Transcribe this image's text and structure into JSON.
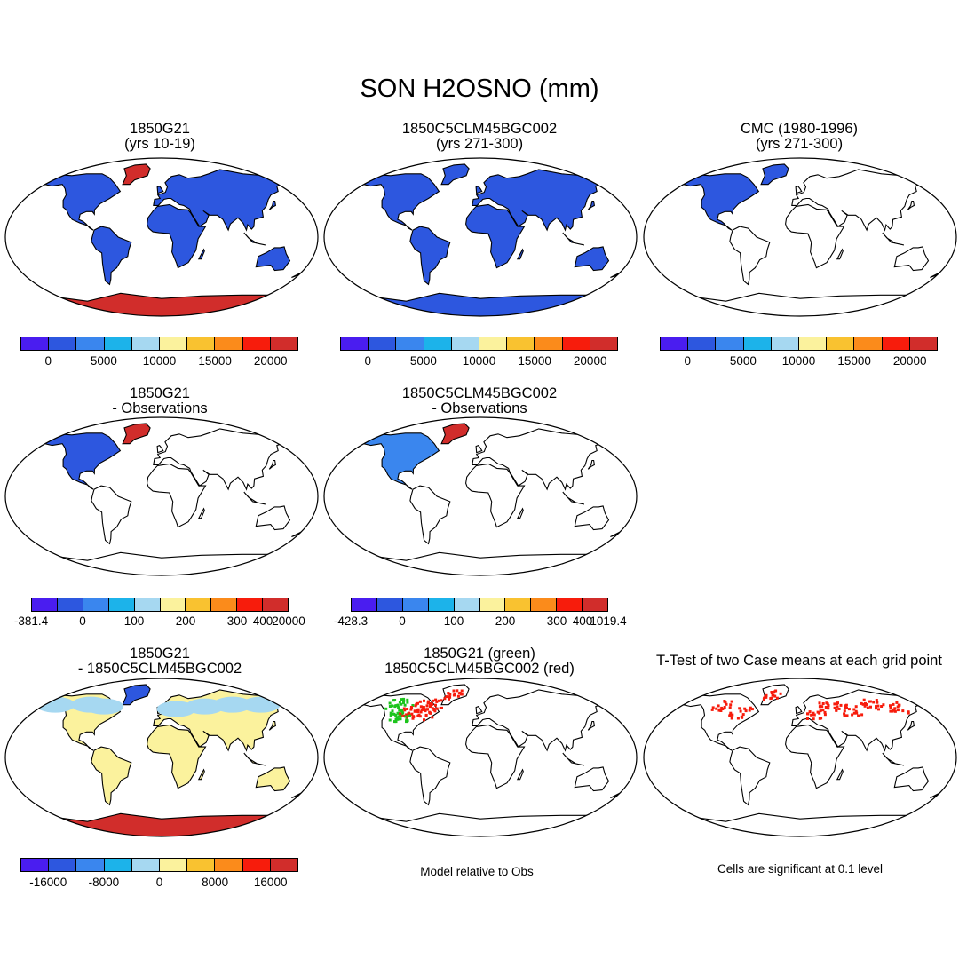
{
  "title": "SON H2OSNO (mm)",
  "palette": [
    "#4a1df0",
    "#2d57df",
    "#3a86ee",
    "#1cb3ea",
    "#a6d8f1",
    "#fbf29d",
    "#f9c230",
    "#fb8b1b",
    "#f71c0c",
    "#d12d2b"
  ],
  "panels": [
    {
      "id": "p1",
      "line1": "1850G21",
      "line2": "(yrs 10-19)",
      "fill": "full",
      "land": "#2d57df",
      "antarctic": "#d12d2b",
      "greenland": "#d12d2b"
    },
    {
      "id": "p2",
      "line1": "1850C5CLM45BGC002",
      "line2": "(yrs 271-300)",
      "fill": "full",
      "land": "#2d57df",
      "antarctic": "#2d57df",
      "greenland": "#2d57df"
    },
    {
      "id": "p3",
      "line1": "CMC (1980-1996)",
      "line2": "(yrs 271-300)",
      "fill": "na",
      "land": "#2d57df",
      "antarctic": "",
      "greenland": ""
    },
    {
      "id": "p4",
      "line1": "1850G21",
      "line2": "- Observations",
      "fill": "na",
      "land": "#2d57df",
      "antarctic": "",
      "greenland": "#d12d2b"
    },
    {
      "id": "p5",
      "line1": "1850C5CLM45BGC002",
      "line2": "- Observations",
      "fill": "na-mixed",
      "land": "#3a86ee",
      "antarctic": "",
      "greenland": "#d12d2b"
    },
    {
      "id": "p7",
      "line1": "1850G21",
      "line2": "- 1850C5CLM45BGC002",
      "fill": "diff",
      "land": "#fbf29d",
      "antarctic": "#d12d2b",
      "greenland": "#2d57df"
    },
    {
      "id": "p8",
      "line1": "1850G21 (green)",
      "line2": "1850C5CLM45BGC002 (red)",
      "fill": "greenred",
      "land": "",
      "antarctic": "",
      "greenland": ""
    },
    {
      "id": "p9",
      "line1": "T-Test of two Case means at each grid point",
      "line2": "",
      "fill": "ttest",
      "land": "",
      "antarctic": "",
      "greenland": ""
    }
  ],
  "colorbars": [
    {
      "id": "cb1",
      "ticks": [
        "0",
        "5000",
        "10000",
        "15000",
        "20000"
      ]
    },
    {
      "id": "cb2",
      "ticks": [
        "0",
        "5000",
        "10000",
        "15000",
        "20000"
      ]
    },
    {
      "id": "cb3",
      "ticks": [
        "0",
        "5000",
        "10000",
        "15000",
        "20000"
      ]
    },
    {
      "id": "cb4",
      "ticks": [
        "-381.4",
        "0",
        "100",
        "200",
        "300",
        "400",
        "20000"
      ]
    },
    {
      "id": "cb5",
      "ticks": [
        "-428.3",
        "0",
        "100",
        "200",
        "300",
        "400",
        "1019.4"
      ]
    },
    {
      "id": "cb7",
      "ticks": [
        "-16000",
        "-8000",
        "0",
        "8000",
        "16000"
      ]
    }
  ],
  "notes": {
    "model_relative": "Model relative to Obs",
    "significance": "Cells are significant at 0.1 level"
  }
}
